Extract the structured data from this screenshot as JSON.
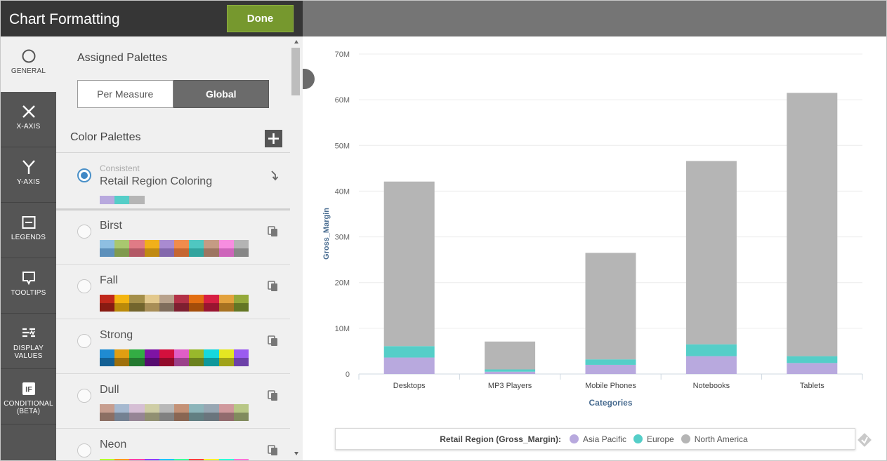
{
  "header": {
    "title": "Chart Formatting",
    "done_label": "Done"
  },
  "nav": {
    "items": [
      {
        "key": "general",
        "label": "GENERAL",
        "icon": "circle-icon",
        "active": true
      },
      {
        "key": "x-axis",
        "label": "X-AXIS",
        "icon": "x-axis-icon"
      },
      {
        "key": "y-axis",
        "label": "Y-AXIS",
        "icon": "y-axis-icon"
      },
      {
        "key": "legends",
        "label": "LEGENDS",
        "icon": "legend-icon"
      },
      {
        "key": "tooltips",
        "label": "TOOLTIPS",
        "icon": "tooltip-icon"
      },
      {
        "key": "display-values",
        "label": "DISPLAY VALUES",
        "icon": "display-values-icon"
      },
      {
        "key": "conditional",
        "label": "CONDITIONAL (BETA)",
        "icon": "if-icon"
      }
    ]
  },
  "panel": {
    "assigned_title": "Assigned Palettes",
    "toggle": {
      "left": "Per Measure",
      "right": "Global",
      "selected": "Global"
    },
    "color_palettes_title": "Color Palettes",
    "current": {
      "subtitle": "Consistent",
      "name": "Retail Region Coloring",
      "colors": [
        "#b8a9de",
        "#55cec8",
        "#b5b5b5"
      ]
    },
    "palettes": [
      {
        "name": "Birst",
        "colors": [
          "#8ebfe2",
          "#a9c86f",
          "#e07b86",
          "#f1b01a",
          "#a98bd1",
          "#f08c4d",
          "#4fc7c1",
          "#c59b84",
          "#f78de0",
          "#b4b4b4",
          "#5d90bb",
          "#7f9a4e",
          "#b35966",
          "#c08a12",
          "#8368ac",
          "#c56632",
          "#32a49e",
          "#9d7561",
          "#cd65ba",
          "#878787"
        ]
      },
      {
        "name": "Fall",
        "colors": [
          "#c0281b",
          "#f4b510",
          "#a48f4a",
          "#e3c98d",
          "#b8a28c",
          "#b33147",
          "#e36e11",
          "#d71f43",
          "#e3a23d",
          "#94a93a",
          "#881b12",
          "#ba8a0a",
          "#73652d",
          "#a88e57",
          "#7f6d5c",
          "#7e1f30",
          "#a44d0a",
          "#991530",
          "#a77221",
          "#637624"
        ]
      },
      {
        "name": "Strong",
        "colors": [
          "#1f8bd2",
          "#e09e12",
          "#33ad44",
          "#7e13a4",
          "#d3103d",
          "#e05ec6",
          "#99b82b",
          "#16d8dd",
          "#e4e622",
          "#9b5cf0",
          "#136094",
          "#9e6f0b",
          "#23792f",
          "#560b70",
          "#920a2a",
          "#9b408a",
          "#6b811d",
          "#0e989b",
          "#a0a218",
          "#6c40a8"
        ]
      },
      {
        "name": "Dull",
        "colors": [
          "#c79e8f",
          "#a6b9d0",
          "#d6bfd5",
          "#cfcea6",
          "#b8b8b8",
          "#c49277",
          "#8db5ba",
          "#98a7b3",
          "#d0999d",
          "#b8c786",
          "#8c6f63",
          "#748192",
          "#968595",
          "#919072",
          "#818181",
          "#896653",
          "#627f82",
          "#6a757d",
          "#926b6e",
          "#818b5e"
        ]
      },
      {
        "name": "Neon",
        "colors": [
          "#b6ff2e",
          "#ff9b1f",
          "#ff3fa8",
          "#8f3fff",
          "#1fc4ff",
          "#3fff9b",
          "#ff3f3f",
          "#ffef2e",
          "#2effd8",
          "#ff72d8",
          "#80b320",
          "#b36d15",
          "#b32c76",
          "#642cb3",
          "#158ab3",
          "#2cb36d",
          "#b32c2c",
          "#b3a720",
          "#20b397",
          "#b35097"
        ]
      }
    ]
  },
  "chart_data": {
    "type": "bar",
    "stacked": true,
    "categories": [
      "Desktops",
      "MP3 Players",
      "Mobile Phones",
      "Notebooks",
      "Tablets"
    ],
    "series": [
      {
        "name": "Asia Pacific",
        "color": "#b8a9de",
        "values": [
          3.6,
          0.5,
          2.0,
          3.9,
          2.4
        ]
      },
      {
        "name": "Europe",
        "color": "#55cec8",
        "values": [
          2.5,
          0.5,
          1.2,
          2.6,
          1.5
        ]
      },
      {
        "name": "North America",
        "color": "#b5b5b5",
        "values": [
          36.0,
          6.1,
          23.3,
          40.1,
          57.6
        ]
      }
    ],
    "xlabel": "Categories",
    "ylabel": "Gross_Margin",
    "ylim": [
      0,
      70
    ],
    "yticks": [
      "0",
      "10M",
      "20M",
      "30M",
      "40M",
      "50M",
      "60M",
      "70M"
    ],
    "grid": true,
    "legend": {
      "title": "Retail Region (Gross_Margin):",
      "position": "bottom",
      "items": [
        "Asia Pacific",
        "Europe",
        "North America"
      ]
    }
  }
}
